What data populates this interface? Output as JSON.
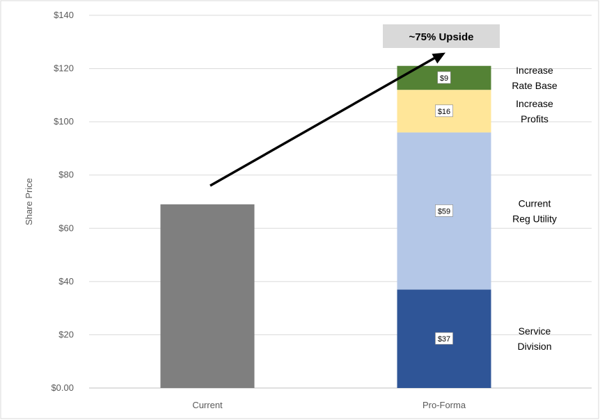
{
  "chart_data": {
    "type": "bar",
    "stacked": true,
    "ylabel": "Share Price",
    "xlabel": "",
    "ylim": [
      0,
      140
    ],
    "y_ticks": [
      0,
      20,
      40,
      60,
      80,
      100,
      120,
      140
    ],
    "y_tick_labels": [
      "$0.00",
      "$20",
      "$40",
      "$60",
      "$80",
      "$100",
      "$120",
      "$140"
    ],
    "grid": true,
    "categories": [
      "Current",
      "Pro-Forma"
    ],
    "current_value": 69,
    "current_color": "#7f7f7f",
    "stack": [
      {
        "name": "Service Division",
        "label_lines": [
          "Service",
          "Division"
        ],
        "value": 37,
        "data_label": "$37",
        "color": "#2f5597"
      },
      {
        "name": "Current Reg Utility",
        "label_lines": [
          "Current",
          "Reg Utility"
        ],
        "value": 59,
        "data_label": "$59",
        "color": "#b4c7e7"
      },
      {
        "name": "Increase Profits",
        "label_lines": [
          "Increase",
          "Profits"
        ],
        "value": 16,
        "data_label": "$16",
        "color": "#ffe699"
      },
      {
        "name": "Increase Rate Base",
        "label_lines": [
          "Increase",
          "Rate Base"
        ],
        "value": 9,
        "data_label": "$9",
        "color": "#548235"
      }
    ],
    "callout": {
      "text": "~75% Upside",
      "arrow_from_y": 76,
      "arrow_to_y": 126
    }
  }
}
